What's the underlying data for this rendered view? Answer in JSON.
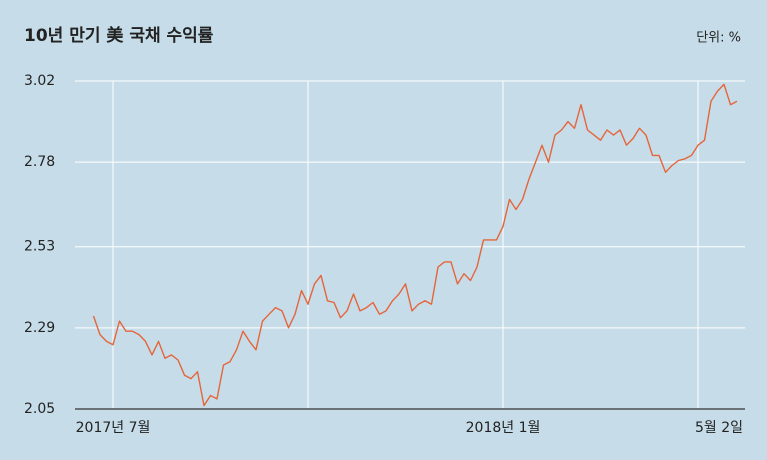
{
  "chart_data": {
    "type": "line",
    "title": "10년 만기 美 국채 수익률",
    "unit": "단위: %",
    "categories": [
      null,
      null,
      null,
      "2017년 7월",
      null,
      null,
      null,
      null,
      null,
      null,
      null,
      null,
      null,
      null,
      null,
      null,
      null,
      null,
      null,
      null,
      null,
      null,
      null,
      null,
      null,
      null,
      null,
      null,
      null,
      null,
      null,
      null,
      null,
      null,
      null,
      null,
      null,
      null,
      null,
      null,
      null,
      null,
      null,
      null,
      null,
      null,
      null,
      null,
      null,
      null,
      null,
      null,
      null,
      null,
      null,
      null,
      null,
      null,
      null,
      null,
      null,
      null,
      null,
      "2018년 1월",
      null,
      null,
      null,
      null,
      null,
      null,
      null,
      null,
      null,
      null,
      null,
      null,
      null,
      null,
      null,
      null,
      null,
      null,
      null,
      null,
      null,
      null,
      null,
      null,
      null,
      null,
      null,
      null,
      null,
      null,
      null,
      null,
      null,
      null,
      null,
      "5월 2일"
    ],
    "values": [
      2.325,
      2.27,
      2.25,
      2.24,
      2.31,
      2.28,
      2.28,
      2.27,
      2.25,
      2.21,
      2.25,
      2.2,
      2.21,
      2.195,
      2.15,
      2.14,
      2.16,
      2.06,
      2.09,
      2.08,
      2.18,
      2.19,
      2.225,
      2.28,
      2.25,
      2.225,
      2.31,
      2.33,
      2.35,
      2.34,
      2.29,
      2.33,
      2.4,
      2.36,
      2.42,
      2.445,
      2.37,
      2.365,
      2.32,
      2.34,
      2.39,
      2.34,
      2.35,
      2.365,
      2.33,
      2.34,
      2.37,
      2.39,
      2.42,
      2.34,
      2.36,
      2.37,
      2.36,
      2.47,
      2.485,
      2.485,
      2.42,
      2.45,
      2.43,
      2.47,
      2.55,
      2.55,
      2.55,
      2.59,
      2.67,
      2.64,
      2.67,
      2.73,
      2.78,
      2.83,
      2.78,
      2.86,
      2.875,
      2.9,
      2.88,
      2.95,
      2.875,
      2.86,
      2.845,
      2.875,
      2.86,
      2.875,
      2.83,
      2.85,
      2.88,
      2.86,
      2.8,
      2.8,
      2.75,
      2.77,
      2.785,
      2.79,
      2.8,
      2.83,
      2.845,
      2.96,
      2.99,
      3.01,
      2.95,
      2.96
    ],
    "color": "#e5653b",
    "ylim": [
      2.05,
      3.02
    ],
    "yticks": [
      2.05,
      2.29,
      2.53,
      2.78,
      3.02
    ],
    "grid": true
  }
}
